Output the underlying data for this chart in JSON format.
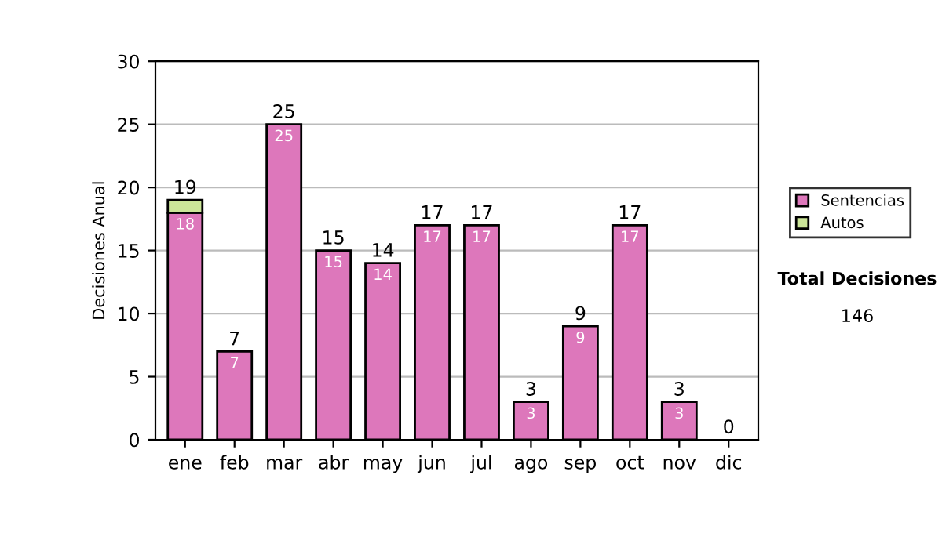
{
  "chart_data": {
    "type": "bar",
    "stacked": true,
    "ylabel": "Decisiones Anual",
    "categories": [
      "ene",
      "feb",
      "mar",
      "abr",
      "may",
      "jun",
      "jul",
      "ago",
      "sep",
      "oct",
      "nov",
      "dic"
    ],
    "series": [
      {
        "name": "Sentencias",
        "color": "#dd77bb",
        "values": [
          18,
          7,
          25,
          15,
          14,
          17,
          17,
          3,
          9,
          17,
          3,
          0
        ],
        "value_labels": [
          "18",
          "7",
          "25",
          "15",
          "14",
          "17",
          "17",
          "3",
          "9",
          "17",
          "3",
          null
        ]
      },
      {
        "name": "Autos",
        "color": "#cce699",
        "values": [
          1,
          0,
          0,
          0,
          0,
          0,
          0,
          0,
          0,
          0,
          0,
          0
        ]
      }
    ],
    "totals": [
      "19",
      "7",
      "25",
      "15",
      "14",
      "17",
      "17",
      "3",
      "9",
      "17",
      "3",
      "0"
    ],
    "ylim": [
      0,
      30
    ],
    "yticks": [
      0,
      5,
      10,
      15,
      20,
      25,
      30
    ],
    "grid": "y",
    "legend": "right",
    "annotations": [
      "Total Decisiones",
      "146"
    ]
  }
}
